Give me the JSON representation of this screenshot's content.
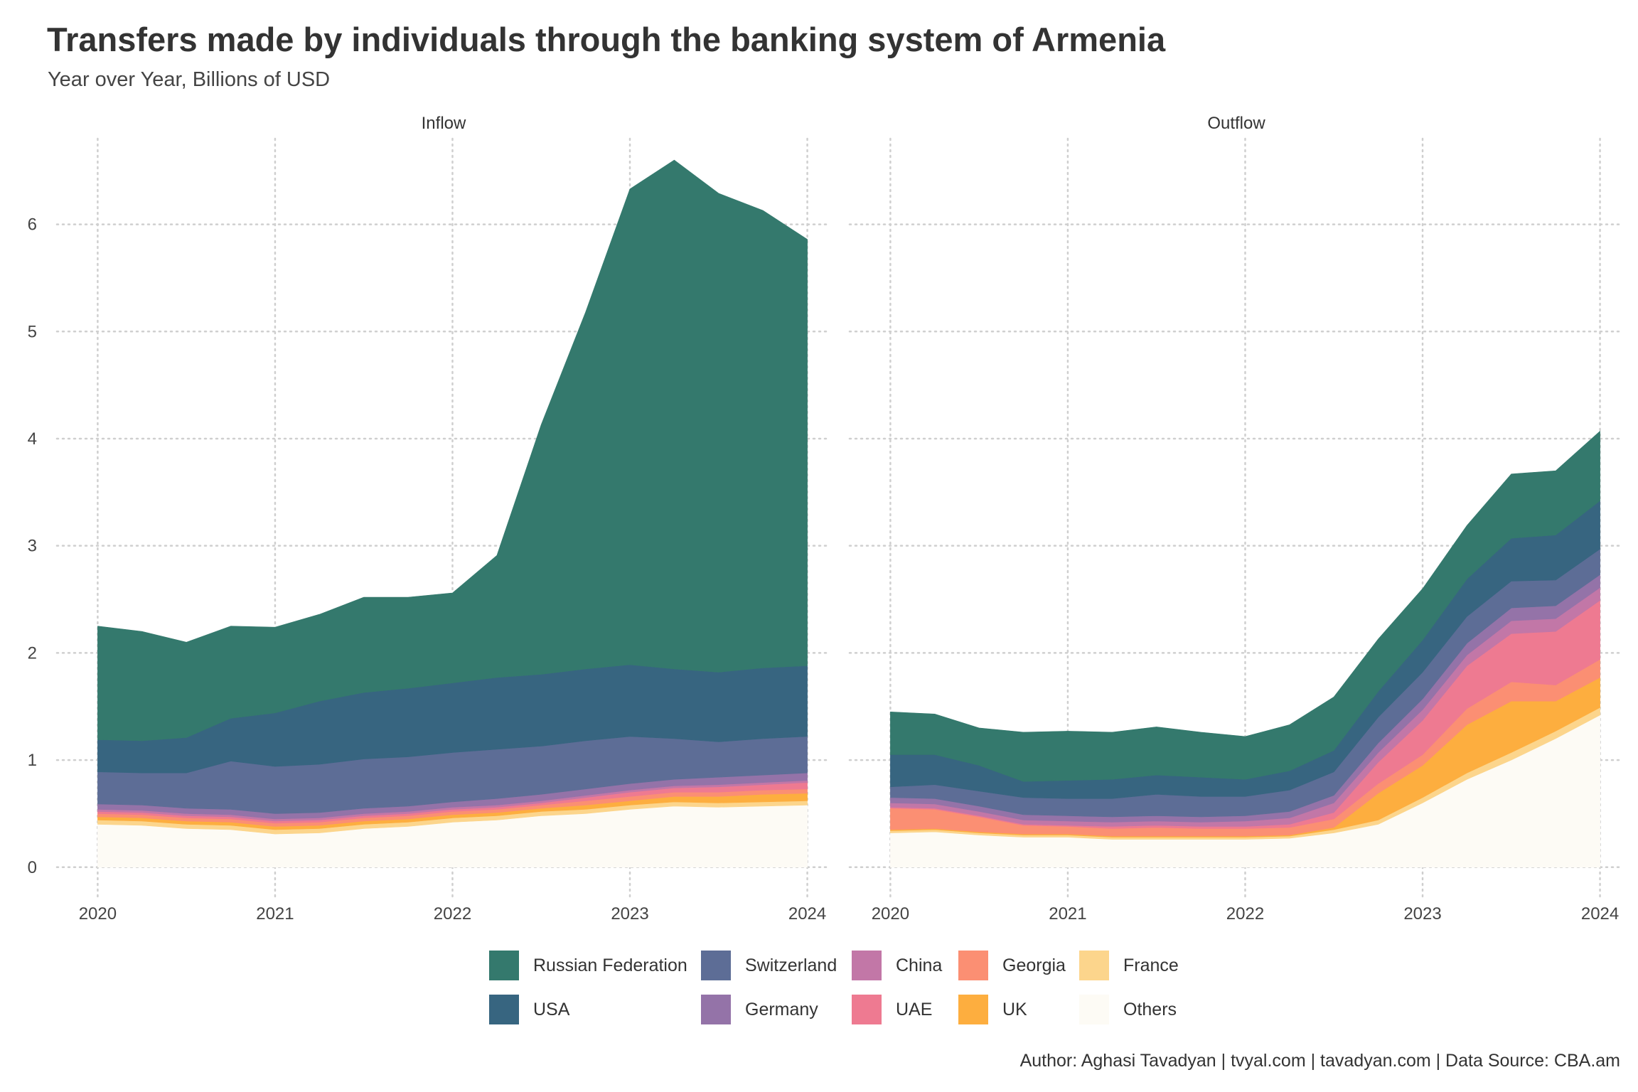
{
  "title": "Transfers made by individuals through the banking system of Armenia",
  "subtitle": "Year over Year, Billions of USD",
  "caption": "Author: Aghasi Tavadyan   |   tvyal.com   |   tavadyan.com   |   Data Source: CBA.am",
  "colors": {
    "Russian Federation": "#34796d",
    "USA": "#376580",
    "Switzerland": "#5d6d96",
    "Germany": "#9473a8",
    "China": "#c277a7",
    "UAE": "#ee7a91",
    "Georgia": "#fb8f73",
    "UK": "#fdae3f",
    "France": "#fcd58c",
    "Others": "#fdfbf5"
  },
  "legend": [
    {
      "name": "Russian Federation",
      "color": "#34796d"
    },
    {
      "name": "USA",
      "color": "#376580"
    },
    {
      "name": "Switzerland",
      "color": "#5d6d96"
    },
    {
      "name": "Germany",
      "color": "#9473a8"
    },
    {
      "name": "China",
      "color": "#c277a7"
    },
    {
      "name": "UAE",
      "color": "#ee7a91"
    },
    {
      "name": "Georgia",
      "color": "#fb8f73"
    },
    {
      "name": "UK",
      "color": "#fdae3f"
    },
    {
      "name": "France",
      "color": "#fcd58c"
    },
    {
      "name": "Others",
      "color": "#fdfbf5"
    }
  ],
  "chart_data": {
    "type": "area",
    "stacked": true,
    "x_ticks": [
      2020,
      2021,
      2022,
      2023,
      2024
    ],
    "y_ticks": [
      0,
      1,
      2,
      3,
      4,
      5,
      6
    ],
    "ylim": [
      -0.3,
      6.8
    ],
    "xlim": [
      2019.77,
      2024.13
    ],
    "grid": true,
    "legend_position": "bottom",
    "stack_order": [
      "Others",
      "France",
      "UK",
      "Georgia",
      "UAE",
      "China",
      "Germany",
      "Switzerland",
      "USA",
      "Russian Federation"
    ],
    "facets": [
      {
        "label": "Inflow",
        "x": [
          2020.0,
          2020.25,
          2020.5,
          2020.75,
          2021.0,
          2021.25,
          2021.5,
          2021.75,
          2022.0,
          2022.25,
          2022.5,
          2022.75,
          2023.0,
          2023.25,
          2023.5,
          2023.75,
          2024.0
        ],
        "series": [
          {
            "name": "Others",
            "values": [
              0.4,
              0.39,
              0.36,
              0.35,
              0.31,
              0.32,
              0.36,
              0.38,
              0.42,
              0.44,
              0.48,
              0.5,
              0.54,
              0.57,
              0.56,
              0.57,
              0.58
            ]
          },
          {
            "name": "France",
            "values": [
              0.04,
              0.04,
              0.04,
              0.04,
              0.04,
              0.04,
              0.04,
              0.04,
              0.04,
              0.04,
              0.04,
              0.04,
              0.04,
              0.04,
              0.04,
              0.04,
              0.04
            ]
          },
          {
            "name": "UK",
            "values": [
              0.03,
              0.03,
              0.03,
              0.03,
              0.03,
              0.03,
              0.03,
              0.03,
              0.03,
              0.03,
              0.03,
              0.04,
              0.04,
              0.05,
              0.06,
              0.07,
              0.07
            ]
          },
          {
            "name": "Georgia",
            "values": [
              0.03,
              0.03,
              0.03,
              0.03,
              0.03,
              0.03,
              0.03,
              0.03,
              0.03,
              0.03,
              0.03,
              0.04,
              0.04,
              0.04,
              0.04,
              0.04,
              0.04
            ]
          },
          {
            "name": "UAE",
            "values": [
              0.02,
              0.02,
              0.02,
              0.02,
              0.02,
              0.02,
              0.02,
              0.02,
              0.02,
              0.02,
              0.02,
              0.03,
              0.04,
              0.04,
              0.05,
              0.05,
              0.06
            ]
          },
          {
            "name": "China",
            "values": [
              0.02,
              0.02,
              0.02,
              0.02,
              0.02,
              0.02,
              0.02,
              0.02,
              0.02,
              0.02,
              0.02,
              0.02,
              0.02,
              0.02,
              0.02,
              0.02,
              0.02
            ]
          },
          {
            "name": "Germany",
            "values": [
              0.05,
              0.05,
              0.05,
              0.05,
              0.05,
              0.05,
              0.05,
              0.05,
              0.05,
              0.06,
              0.06,
              0.06,
              0.06,
              0.06,
              0.07,
              0.07,
              0.07
            ]
          },
          {
            "name": "Switzerland",
            "values": [
              0.3,
              0.3,
              0.33,
              0.45,
              0.44,
              0.45,
              0.46,
              0.46,
              0.46,
              0.46,
              0.45,
              0.45,
              0.44,
              0.38,
              0.33,
              0.34,
              0.34
            ]
          },
          {
            "name": "USA",
            "values": [
              0.3,
              0.3,
              0.33,
              0.4,
              0.5,
              0.59,
              0.62,
              0.64,
              0.65,
              0.67,
              0.67,
              0.67,
              0.67,
              0.65,
              0.65,
              0.66,
              0.66
            ]
          },
          {
            "name": "Russian Federation",
            "values": [
              1.06,
              1.02,
              0.89,
              0.86,
              0.8,
              0.81,
              0.89,
              0.85,
              0.84,
              1.14,
              2.33,
              3.33,
              4.44,
              4.75,
              4.47,
              4.27,
              3.98
            ]
          }
        ]
      },
      {
        "label": "Outflow",
        "x": [
          2020.0,
          2020.25,
          2020.5,
          2020.75,
          2021.0,
          2021.25,
          2021.5,
          2021.75,
          2022.0,
          2022.25,
          2022.5,
          2022.75,
          2023.0,
          2023.25,
          2023.5,
          2023.75,
          2024.0
        ],
        "series": [
          {
            "name": "Others",
            "values": [
              0.32,
              0.33,
              0.3,
              0.28,
              0.28,
              0.26,
              0.26,
              0.26,
              0.26,
              0.27,
              0.32,
              0.4,
              0.6,
              0.82,
              1.0,
              1.2,
              1.42
            ]
          },
          {
            "name": "France",
            "values": [
              0.02,
              0.02,
              0.02,
              0.02,
              0.02,
              0.02,
              0.02,
              0.02,
              0.02,
              0.02,
              0.03,
              0.04,
              0.05,
              0.06,
              0.07,
              0.07,
              0.07
            ]
          },
          {
            "name": "UK",
            "values": [
              0.01,
              0.01,
              0.01,
              0.01,
              0.01,
              0.01,
              0.01,
              0.01,
              0.01,
              0.01,
              0.02,
              0.25,
              0.3,
              0.45,
              0.48,
              0.28,
              0.28
            ]
          },
          {
            "name": "Georgia",
            "values": [
              0.2,
              0.18,
              0.14,
              0.08,
              0.07,
              0.07,
              0.08,
              0.07,
              0.07,
              0.07,
              0.08,
              0.09,
              0.1,
              0.15,
              0.18,
              0.15,
              0.17
            ]
          },
          {
            "name": "UAE",
            "values": [
              0.01,
              0.01,
              0.01,
              0.01,
              0.01,
              0.02,
              0.02,
              0.02,
              0.02,
              0.03,
              0.06,
              0.2,
              0.32,
              0.4,
              0.45,
              0.5,
              0.55
            ]
          },
          {
            "name": "China",
            "values": [
              0.04,
              0.04,
              0.04,
              0.04,
              0.04,
              0.04,
              0.04,
              0.04,
              0.05,
              0.06,
              0.09,
              0.09,
              0.1,
              0.1,
              0.12,
              0.12,
              0.12
            ]
          },
          {
            "name": "Germany",
            "values": [
              0.05,
              0.05,
              0.05,
              0.05,
              0.05,
              0.05,
              0.05,
              0.05,
              0.05,
              0.06,
              0.07,
              0.09,
              0.1,
              0.11,
              0.12,
              0.12,
              0.12
            ]
          },
          {
            "name": "Switzerland",
            "values": [
              0.1,
              0.13,
              0.14,
              0.16,
              0.16,
              0.17,
              0.2,
              0.19,
              0.18,
              0.2,
              0.22,
              0.24,
              0.25,
              0.25,
              0.25,
              0.24,
              0.24
            ]
          },
          {
            "name": "USA",
            "values": [
              0.3,
              0.28,
              0.24,
              0.15,
              0.17,
              0.18,
              0.18,
              0.18,
              0.16,
              0.18,
              0.2,
              0.24,
              0.3,
              0.35,
              0.4,
              0.42,
              0.45
            ]
          },
          {
            "name": "Russian Federation",
            "values": [
              0.4,
              0.38,
              0.35,
              0.46,
              0.46,
              0.44,
              0.45,
              0.42,
              0.4,
              0.43,
              0.5,
              0.49,
              0.48,
              0.5,
              0.6,
              0.6,
              0.65
            ]
          }
        ]
      }
    ]
  }
}
